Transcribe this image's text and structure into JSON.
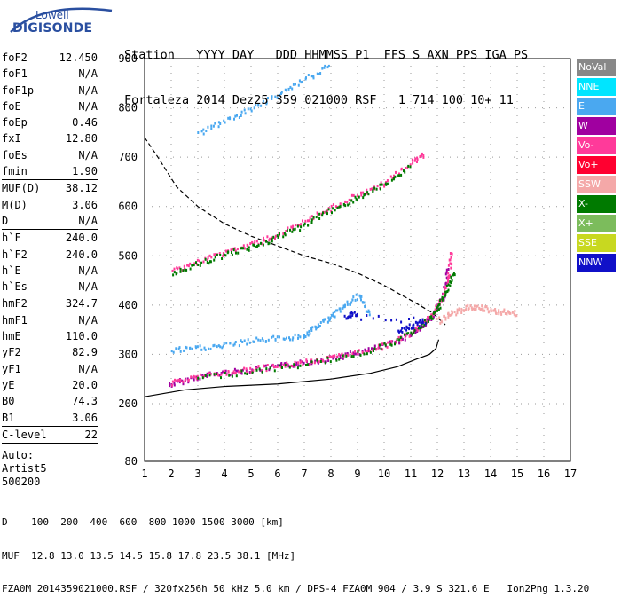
{
  "logo": {
    "line1": "Lowell",
    "line2": "DIGISONDE"
  },
  "header": {
    "labels": "Station   YYYY DAY   DDD HHMMSS P1  FFS S AXN PPS IGA PS",
    "values": "Fortaleza 2014 Dez25 359 021000 RSF   1 714 100 10+ 11"
  },
  "params": {
    "group1": [
      {
        "name": "foF2",
        "value": "12.450"
      },
      {
        "name": "foF1",
        "value": "N/A"
      },
      {
        "name": "foF1p",
        "value": "N/A"
      },
      {
        "name": "foE",
        "value": "N/A"
      },
      {
        "name": "foEp",
        "value": "0.46"
      },
      {
        "name": "fxI",
        "value": "12.80"
      },
      {
        "name": "foEs",
        "value": "N/A"
      },
      {
        "name": "fmin",
        "value": "1.90"
      }
    ],
    "group2": [
      {
        "name": "MUF(D)",
        "value": "38.12"
      },
      {
        "name": "M(D)",
        "value": "3.06"
      },
      {
        "name": "D",
        "value": "N/A"
      }
    ],
    "group3": [
      {
        "name": "h`F",
        "value": "240.0"
      },
      {
        "name": "h`F2",
        "value": "240.0"
      },
      {
        "name": "h`E",
        "value": "N/A"
      },
      {
        "name": "h`Es",
        "value": "N/A"
      }
    ],
    "group4": [
      {
        "name": "hmF2",
        "value": "324.7"
      },
      {
        "name": "hmF1",
        "value": "N/A"
      },
      {
        "name": "hmE",
        "value": "110.0"
      },
      {
        "name": "yF2",
        "value": "82.9"
      },
      {
        "name": "yF1",
        "value": "N/A"
      },
      {
        "name": "yE",
        "value": "20.0"
      },
      {
        "name": "B0",
        "value": "74.3"
      },
      {
        "name": "B1",
        "value": "3.06"
      }
    ],
    "clevel": {
      "name": "C-level",
      "value": "22"
    },
    "auto": [
      "Auto:",
      "Artist5",
      "500200"
    ]
  },
  "legend": [
    {
      "label": "NoVal",
      "color": "#888888"
    },
    {
      "label": "NNE",
      "color": "#00e5ff"
    },
    {
      "label": "E",
      "color": "#4aa8f0"
    },
    {
      "label": "W",
      "color": "#a000a0"
    },
    {
      "label": "Vo-",
      "color": "#ff3a9a"
    },
    {
      "label": "Vo+",
      "color": "#ff0030"
    },
    {
      "label": "SSW",
      "color": "#f4a8a8"
    },
    {
      "label": "X-",
      "color": "#007a00"
    },
    {
      "label": "X+",
      "color": "#7cbc5c"
    },
    {
      "label": "SSE",
      "color": "#c8d820"
    },
    {
      "label": "NNW",
      "color": "#1010c8"
    }
  ],
  "footer": {
    "line1": "D    100  200  400  600  800 1000 1500 3000 [km]",
    "line2": "MUF  12.8 13.0 13.5 14.5 15.8 17.8 23.5 38.1 [MHz]",
    "line3": "FZA0M_2014359021000.RSF / 320fx256h 50 kHz 5.0 km / DPS-4 FZA0M 904 / 3.9 S 321.6 E   Ion2Png 1.3.20"
  },
  "chart_data": {
    "type": "scatter",
    "xlim": [
      1,
      17
    ],
    "ylim": [
      80,
      900
    ],
    "xticks": [
      1,
      2,
      3,
      4,
      5,
      6,
      7,
      8,
      9,
      10,
      11,
      12,
      13,
      14,
      15,
      16,
      17
    ],
    "yticks": [
      80,
      200,
      300,
      400,
      500,
      600,
      700,
      800,
      900
    ],
    "grid": true,
    "series": [
      {
        "color": "#000000",
        "style": "solid",
        "values": [
          [
            1.0,
            214
          ],
          [
            2.5,
            228
          ],
          [
            4,
            235
          ],
          [
            6,
            240
          ],
          [
            8,
            250
          ],
          [
            9.5,
            262
          ],
          [
            10.5,
            275
          ],
          [
            11.2,
            290
          ],
          [
            11.7,
            300
          ],
          [
            11.95,
            312
          ],
          [
            12.05,
            330
          ]
        ]
      },
      {
        "color": "#000000",
        "style": "dashed",
        "values": [
          [
            1.0,
            740
          ],
          [
            1.5,
            700
          ],
          [
            2.2,
            640
          ],
          [
            3,
            600
          ],
          [
            4,
            565
          ],
          [
            5,
            540
          ],
          [
            6,
            520
          ],
          [
            7,
            500
          ],
          [
            8,
            485
          ],
          [
            9,
            465
          ],
          [
            10,
            440
          ],
          [
            11,
            410
          ],
          [
            11.8,
            385
          ],
          [
            12.3,
            360
          ]
        ]
      },
      {
        "color": "#a000a0",
        "style": "dots",
        "values": [
          [
            1.9,
            240
          ],
          [
            2.5,
            250
          ],
          [
            3.5,
            262
          ],
          [
            4.5,
            268
          ],
          [
            5.5,
            274
          ],
          [
            6.5,
            282
          ],
          [
            7.5,
            290
          ],
          [
            8.5,
            300
          ],
          [
            9.5,
            312
          ],
          [
            10.5,
            330
          ],
          [
            11.2,
            350
          ],
          [
            11.8,
            380
          ],
          [
            12.2,
            420
          ],
          [
            12.4,
            480
          ]
        ]
      },
      {
        "color": "#ff3a9a",
        "style": "dots",
        "values": [
          [
            2.0,
            245
          ],
          [
            3.0,
            258
          ],
          [
            4.0,
            265
          ],
          [
            5.0,
            272
          ],
          [
            6.0,
            278
          ],
          [
            7.0,
            286
          ],
          [
            8.0,
            295
          ],
          [
            9.0,
            306
          ],
          [
            10.0,
            320
          ],
          [
            11.0,
            345
          ],
          [
            11.6,
            372
          ],
          [
            12.1,
            410
          ],
          [
            12.4,
            460
          ],
          [
            12.5,
            510
          ]
        ]
      },
      {
        "color": "#007a00",
        "style": "dots",
        "values": [
          [
            3.0,
            255
          ],
          [
            5.0,
            268
          ],
          [
            7.0,
            282
          ],
          [
            9.0,
            303
          ],
          [
            10.5,
            330
          ],
          [
            11.5,
            365
          ],
          [
            12.0,
            395
          ],
          [
            12.3,
            430
          ],
          [
            12.6,
            470
          ]
        ]
      },
      {
        "color": "#4aa8f0",
        "style": "dots",
        "values": [
          [
            2.0,
            310
          ],
          [
            3,
            315
          ],
          [
            4,
            320
          ],
          [
            5,
            330
          ],
          [
            6,
            335
          ],
          [
            7,
            340
          ],
          [
            7.5,
            360
          ],
          [
            8,
            380
          ],
          [
            8.5,
            400
          ],
          [
            9,
            420
          ],
          [
            9.5,
            380
          ]
        ]
      },
      {
        "color": "#ff3a9a",
        "style": "dots",
        "values": [
          [
            2,
            472
          ],
          [
            3,
            490
          ],
          [
            4,
            510
          ],
          [
            5,
            525
          ],
          [
            6,
            545
          ],
          [
            7,
            570
          ],
          [
            8,
            600
          ],
          [
            9,
            625
          ],
          [
            10,
            650
          ],
          [
            11,
            690
          ],
          [
            11.5,
            710
          ]
        ]
      },
      {
        "color": "#007a00",
        "style": "dots",
        "values": [
          [
            2,
            468
          ],
          [
            3,
            486
          ],
          [
            4,
            505
          ],
          [
            5,
            520
          ],
          [
            6,
            540
          ],
          [
            7,
            565
          ],
          [
            8,
            595
          ],
          [
            9,
            620
          ],
          [
            10,
            645
          ],
          [
            11,
            685
          ]
        ]
      },
      {
        "color": "#4aa8f0",
        "style": "dots",
        "values": [
          [
            3,
            750
          ],
          [
            4,
            775
          ],
          [
            5,
            800
          ],
          [
            6,
            830
          ],
          [
            7,
            860
          ],
          [
            8,
            890
          ]
        ]
      },
      {
        "color": "#f4a8a8",
        "style": "dots",
        "values": [
          [
            12,
            370
          ],
          [
            12.5,
            385
          ],
          [
            13,
            395
          ],
          [
            13.5,
            400
          ],
          [
            14,
            392
          ],
          [
            14.5,
            388
          ],
          [
            15,
            385
          ]
        ]
      },
      {
        "color": "#1010c8",
        "style": "dots",
        "values": [
          [
            10.5,
            350
          ],
          [
            11,
            360
          ],
          [
            11.5,
            370
          ],
          [
            8.5,
            380
          ],
          [
            9,
            385
          ]
        ]
      }
    ]
  }
}
